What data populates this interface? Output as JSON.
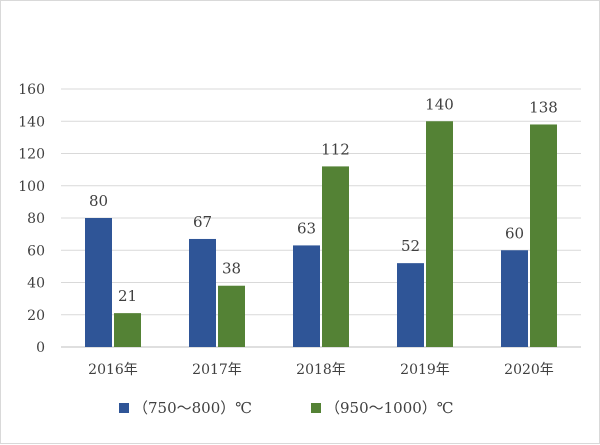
{
  "chart_data": {
    "type": "bar",
    "title": "",
    "xlabel": "",
    "ylabel": "",
    "categories": [
      "2016年",
      "2017年",
      "2018年",
      "2019年",
      "2020年"
    ],
    "series": [
      {
        "name": "（750～800）℃",
        "color": "#2f5597",
        "values": [
          80,
          67,
          63,
          52,
          60
        ]
      },
      {
        "name": "（950～1000）℃",
        "color": "#548235",
        "values": [
          21,
          38,
          112,
          140,
          138
        ]
      }
    ],
    "ylim": [
      0,
      160
    ],
    "yticks": [
      0,
      20,
      40,
      60,
      80,
      100,
      120,
      140,
      160
    ],
    "grid": true,
    "legend": "bottom"
  }
}
